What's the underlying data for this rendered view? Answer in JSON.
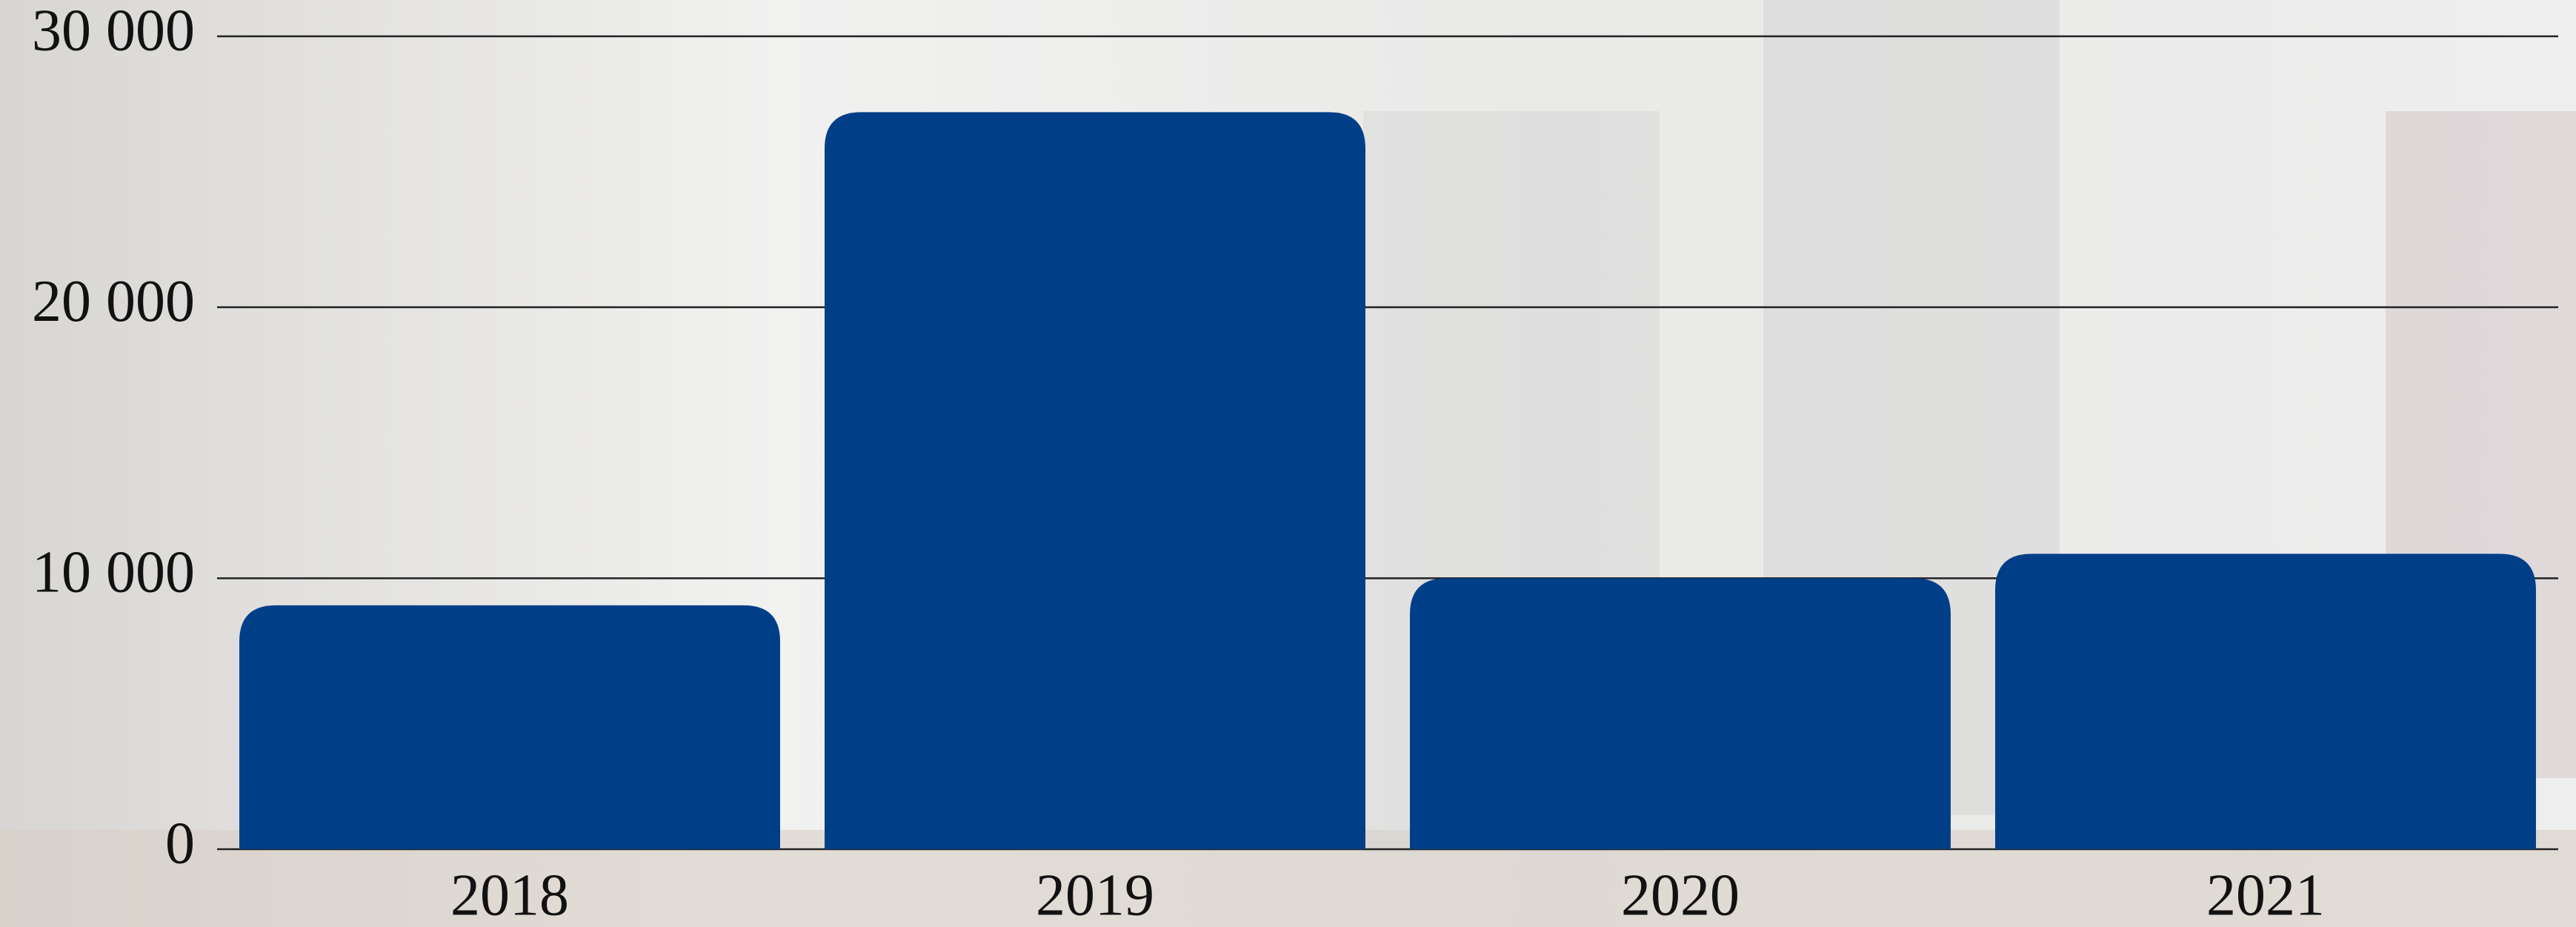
{
  "chart_data": {
    "type": "bar",
    "categories": [
      "2018",
      "2019",
      "2020",
      "2021"
    ],
    "values": [
      9000,
      27200,
      10000,
      10900
    ],
    "color": "#003f87",
    "ylim": [
      0,
      30000
    ],
    "yticks": [
      0,
      {
        "value": 10000,
        "label": "10 000"
      },
      {
        "value": 20000,
        "label": "20 000"
      },
      {
        "value": 30000,
        "label": "30 000"
      }
    ],
    "grid": true
  }
}
